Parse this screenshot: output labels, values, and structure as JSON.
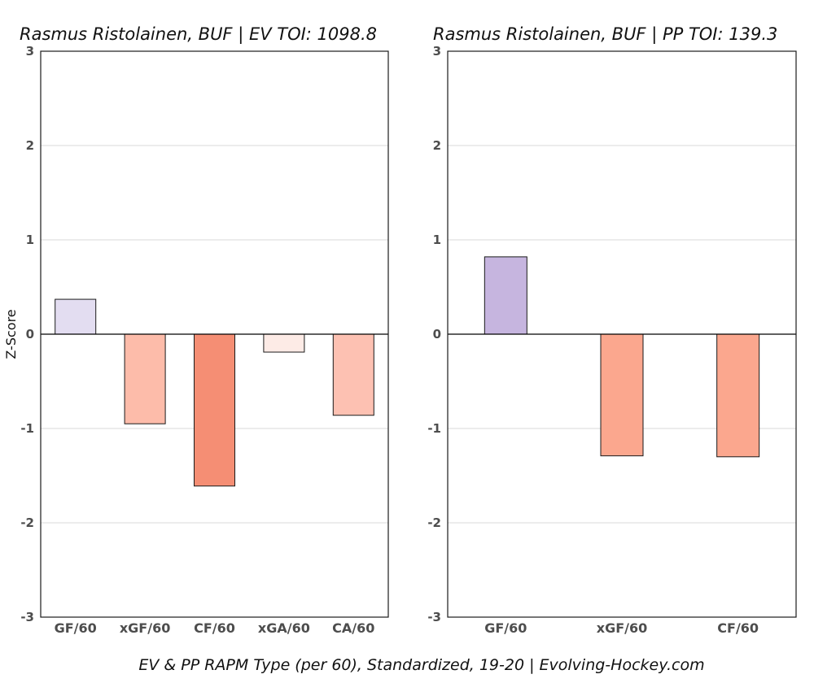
{
  "chart_data": [
    {
      "type": "bar",
      "title": "Rasmus Ristolainen, BUF  |  EV TOI: 1098.8",
      "ylabel": "Z-Score",
      "ylim": [
        -3,
        3
      ],
      "yticks": [
        3,
        2,
        1,
        0,
        -1,
        -2,
        -3
      ],
      "grid": true,
      "categories": [
        "GF/60",
        "xGF/60",
        "CF/60",
        "xGA/60",
        "CA/60"
      ],
      "values": [
        0.37,
        -0.95,
        -1.61,
        -0.19,
        -0.86
      ],
      "colors": [
        "#e3ddf1",
        "#fdbcaa",
        "#f58e74",
        "#fdebe6",
        "#fdc1b2"
      ]
    },
    {
      "type": "bar",
      "title": "Rasmus Ristolainen, BUF  |  PP TOI: 139.3",
      "ylabel": "",
      "ylim": [
        -3,
        3
      ],
      "yticks": [
        3,
        2,
        1,
        0,
        -1,
        -2,
        -3
      ],
      "grid": true,
      "categories": [
        "GF/60",
        "xGF/60",
        "CF/60"
      ],
      "values": [
        0.82,
        -1.29,
        -1.3
      ],
      "colors": [
        "#c6b5df",
        "#fba78e",
        "#fba78e"
      ]
    }
  ],
  "caption": "EV & PP RAPM Type (per 60), Standardized, 19-20    |    Evolving-Hockey.com"
}
